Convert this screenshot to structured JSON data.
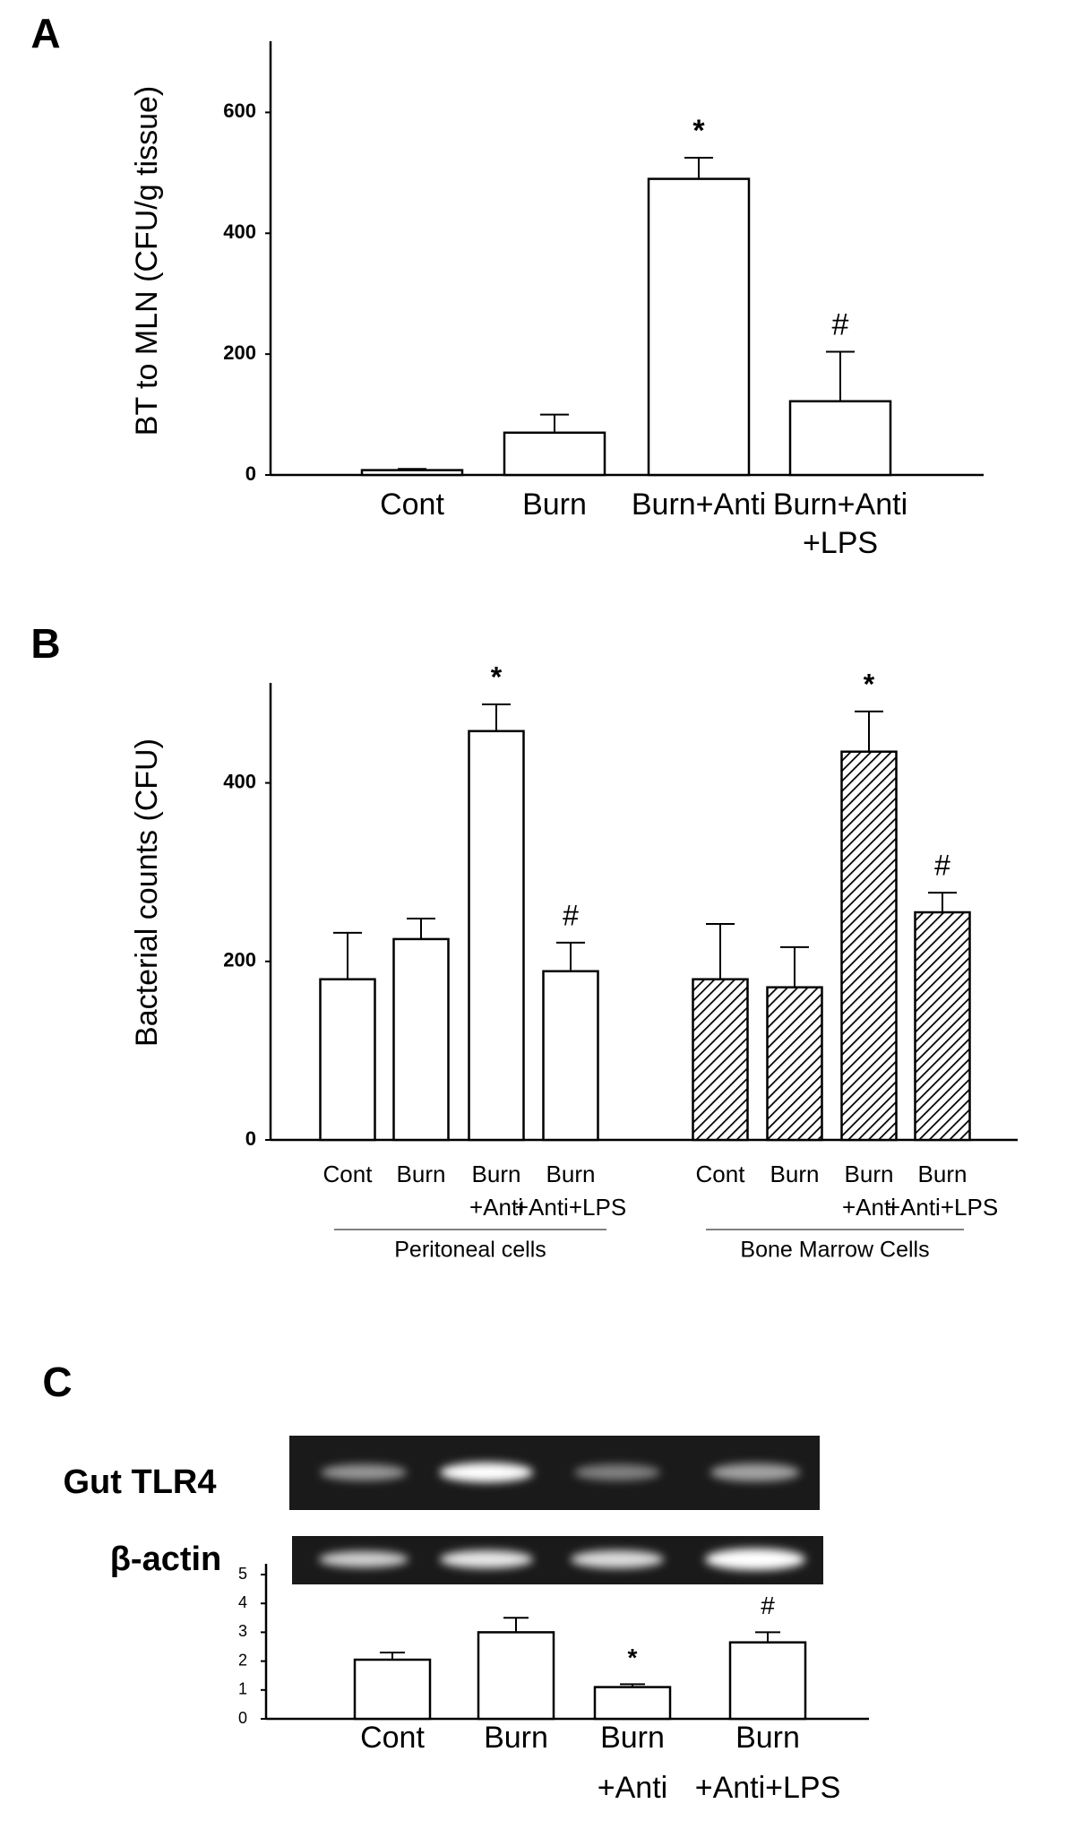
{
  "chart_data": [
    {
      "type": "bar",
      "title": "A",
      "y_label": "BT to MLN (CFU/g tissue)",
      "categories": [
        "Cont",
        "Burn",
        "Burn+Anti",
        "Burn+Anti\n+LPS"
      ],
      "values": [
        8,
        70,
        490,
        122
      ],
      "errors": [
        2,
        30,
        35,
        82
      ],
      "value_annotations": [
        null,
        null,
        "*",
        "#"
      ],
      "color": "#ffffff",
      "ylim": [
        0,
        700
      ],
      "yticks": [
        0,
        200,
        400,
        600
      ]
    },
    {
      "type": "bar",
      "title": "B",
      "y_label": "Bacterial counts (CFU)",
      "categories": [
        "Cont",
        "Burn",
        "Burn\n+Anti",
        "Burn\n+Anti+LPS"
      ],
      "series": [
        {
          "name": "Peritoneal cells",
          "color": "#ffffff",
          "hatch": false,
          "values": [
            180,
            225,
            458,
            189
          ],
          "errors": [
            52,
            23,
            30,
            32
          ],
          "annotations": [
            null,
            null,
            "*",
            "#"
          ]
        },
        {
          "name": "Bone Marrow Cells",
          "color": "#ffffff",
          "hatch": true,
          "values": [
            180,
            171,
            435,
            255
          ],
          "errors": [
            62,
            45,
            45,
            22
          ],
          "annotations": [
            null,
            null,
            "*",
            "#"
          ]
        }
      ],
      "ylim": [
        0,
        500
      ],
      "yticks": [
        0,
        200,
        400
      ]
    },
    {
      "type": "bar",
      "title": "C",
      "blot_labels": [
        "Gut TLR4",
        "β-actin"
      ],
      "categories": [
        "Cont",
        "Burn",
        "Burn\n+Anti",
        "Burn\n+Anti+LPS"
      ],
      "values": [
        2.05,
        3.0,
        1.1,
        2.65
      ],
      "errors": [
        0.25,
        0.5,
        0.1,
        0.35
      ],
      "value_annotations": [
        null,
        null,
        "*",
        "#"
      ],
      "color": "#ffffff",
      "ylim": [
        0,
        5
      ],
      "yticks": [
        0,
        1,
        2,
        3,
        4,
        5
      ]
    }
  ]
}
